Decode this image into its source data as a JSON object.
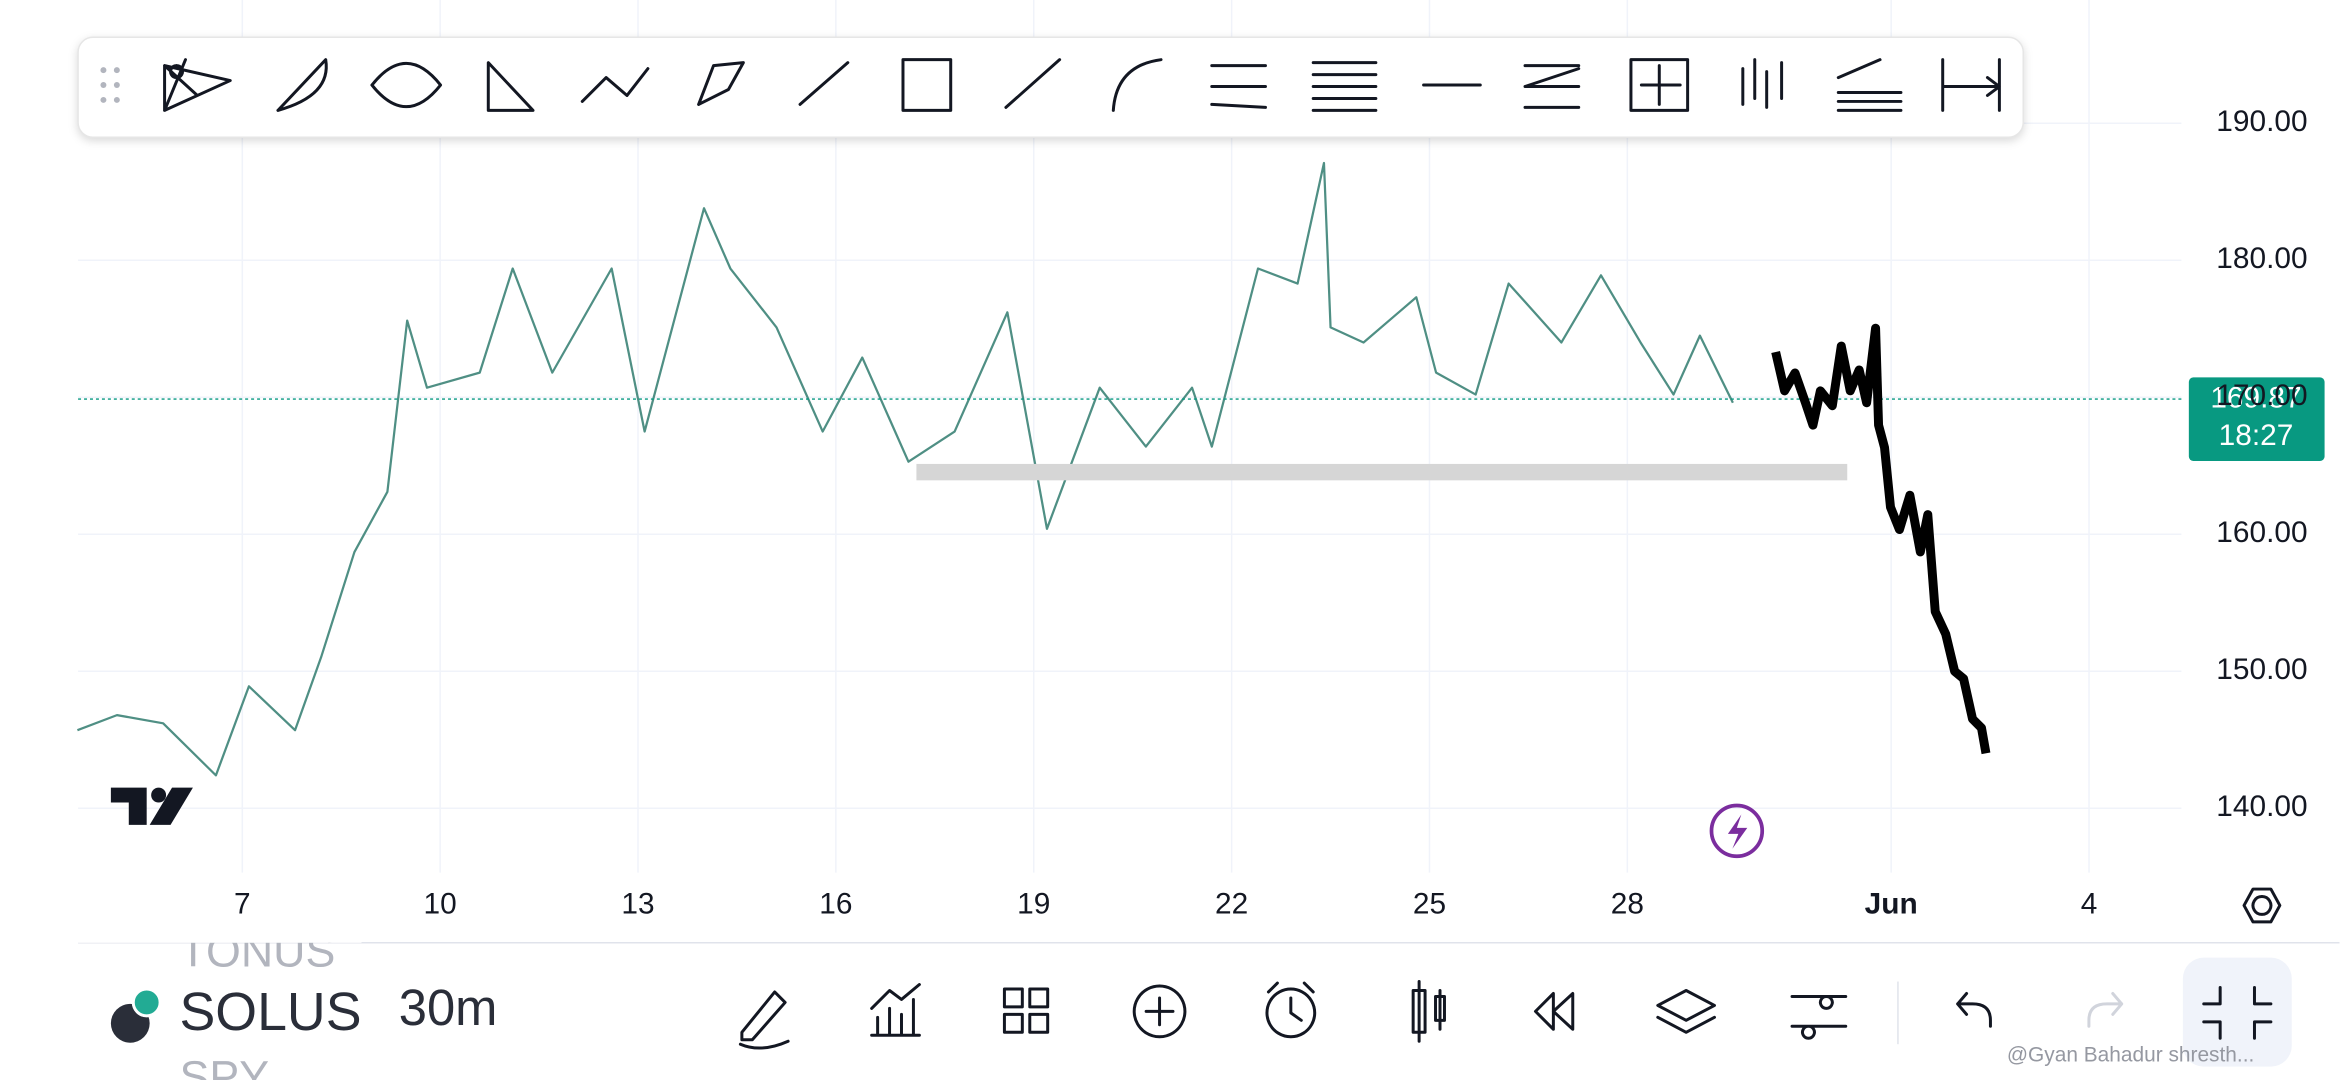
{
  "chart_data": {
    "type": "line",
    "x": [
      4.5,
      5.1,
      5.8,
      6.6,
      7.1,
      7.8,
      8.2,
      8.7,
      9.2,
      9.5,
      9.8,
      10.6,
      11.1,
      11.7,
      12.6,
      13.1,
      14.0,
      14.4,
      15.1,
      15.8,
      16.4,
      17.1,
      17.8,
      18.6,
      19.2,
      20.0,
      20.7,
      21.4,
      21.7,
      22.4,
      23.0,
      23.4,
      23.5,
      24.0,
      24.8,
      25.1,
      25.7,
      26.2,
      27.0,
      27.6,
      28.2,
      28.7,
      29.1,
      29.6
    ],
    "series": [
      {
        "color": "#4f8f84",
        "values": [
          145.7,
          146.8,
          146.2,
          142.4,
          148.9,
          145.7,
          151.1,
          158.7,
          163.1,
          175.6,
          170.7,
          171.8,
          179.4,
          171.8,
          179.4,
          167.5,
          183.8,
          179.4,
          175.1,
          167.5,
          172.9,
          165.3,
          167.5,
          176.2,
          160.4,
          170.7,
          166.4,
          170.7,
          166.4,
          179.4,
          178.3,
          187.1,
          175.1,
          174.0,
          177.3,
          171.8,
          170.2,
          178.3,
          174.0,
          178.9,
          174.0,
          170.2,
          174.5,
          169.6
        ]
      }
    ],
    "xlim": [
      4.51,
      36.4
    ],
    "xticks": [
      7,
      10,
      13,
      16,
      19,
      22,
      25,
      28,
      {
        "value": 32,
        "label": "Jun"
      },
      {
        "value": 35,
        "label": "4"
      }
    ],
    "ylim": [
      135.3,
      199.0
    ],
    "yticks": [
      {
        "value": 140,
        "label": "140.00"
      },
      {
        "value": 150,
        "label": "150.00"
      },
      {
        "value": 160,
        "label": "160.00"
      },
      {
        "value": 170,
        "label": "170.00"
      },
      {
        "value": 180,
        "label": "180.00"
      },
      {
        "value": 190,
        "label": "190.00"
      }
    ],
    "grid": true,
    "last_price": {
      "value": 169.87,
      "label": "169.87",
      "time": "18:27",
      "color": "#089981"
    }
  },
  "bottom_bar": {
    "symbol_above": "TONUS",
    "symbol": "SOLUS",
    "symbol_below": "SPY",
    "interval": "30m",
    "watermark": "@Gyan Bahadur shresth..."
  }
}
